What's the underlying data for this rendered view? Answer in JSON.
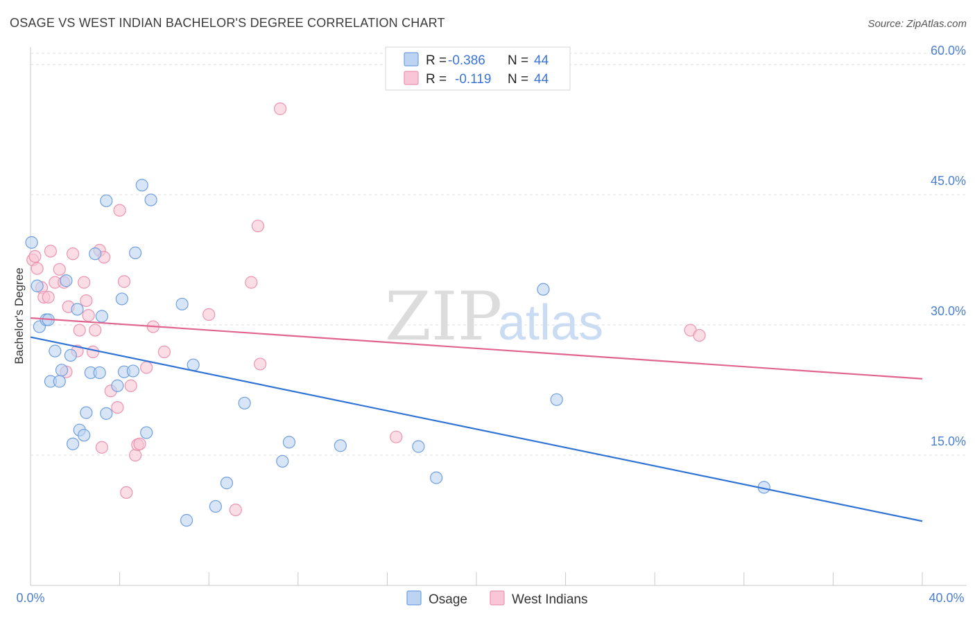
{
  "title": "OSAGE VS WEST INDIAN BACHELOR'S DEGREE CORRELATION CHART",
  "source": "Source: ZipAtlas.com",
  "watermark": {
    "zip": "ZIP",
    "atlas": "atlas"
  },
  "legend": {
    "r_label": "R =",
    "n_label": "N =",
    "rows": [
      {
        "r": "-0.386",
        "n": "44"
      },
      {
        "r": "-0.119",
        "n": "44"
      }
    ]
  },
  "chart_data": {
    "type": "scatter",
    "title": "OSAGE VS WEST INDIAN BACHELOR'S DEGREE CORRELATION CHART",
    "xlabel": "",
    "ylabel": "Bachelor's Degree",
    "xlim": [
      0,
      40
    ],
    "ylim": [
      0,
      62
    ],
    "x_tick_labels": [
      "0.0%",
      "40.0%"
    ],
    "y_ticks": [
      15,
      30,
      45,
      60
    ],
    "y_tick_labels": [
      "15.0%",
      "30.0%",
      "45.0%",
      "60.0%"
    ],
    "grid": true,
    "legend_position": "top-center",
    "colors": {
      "osage_fill": "#bcd3f2",
      "osage_stroke": "#6f9fe0",
      "osage_line": "#2f73d5",
      "wi_fill": "#f8c6d6",
      "wi_stroke": "#ec93b0",
      "wi_line": "#e0648f"
    },
    "series": [
      {
        "name": "Osage",
        "points": [
          [
            0.05,
            39.5
          ],
          [
            0.3,
            34.5
          ],
          [
            0.4,
            29.8
          ],
          [
            0.7,
            30.6
          ],
          [
            0.8,
            30.6
          ],
          [
            0.9,
            23.5
          ],
          [
            1.1,
            27.0
          ],
          [
            1.3,
            23.5
          ],
          [
            1.4,
            24.8
          ],
          [
            1.6,
            35.1
          ],
          [
            1.8,
            26.5
          ],
          [
            1.9,
            16.3
          ],
          [
            2.1,
            31.8
          ],
          [
            2.2,
            17.9
          ],
          [
            2.4,
            17.3
          ],
          [
            2.5,
            19.9
          ],
          [
            2.7,
            24.5
          ],
          [
            2.9,
            38.2
          ],
          [
            3.1,
            24.5
          ],
          [
            3.2,
            31.0
          ],
          [
            3.4,
            19.8
          ],
          [
            3.4,
            44.3
          ],
          [
            3.9,
            23.0
          ],
          [
            4.1,
            33.0
          ],
          [
            4.2,
            24.6
          ],
          [
            4.6,
            24.7
          ],
          [
            4.7,
            38.3
          ],
          [
            5.0,
            46.1
          ],
          [
            5.2,
            17.6
          ],
          [
            5.4,
            44.4
          ],
          [
            6.8,
            32.4
          ],
          [
            7.0,
            7.5
          ],
          [
            7.3,
            25.4
          ],
          [
            8.3,
            9.1
          ],
          [
            8.8,
            11.8
          ],
          [
            9.6,
            21.0
          ],
          [
            11.3,
            14.3
          ],
          [
            11.6,
            16.5
          ],
          [
            13.9,
            16.1
          ],
          [
            17.4,
            16.0
          ],
          [
            18.2,
            12.4
          ],
          [
            23.0,
            34.1
          ],
          [
            23.6,
            21.4
          ],
          [
            32.9,
            11.3
          ]
        ],
        "trend": {
          "x": [
            0,
            40
          ],
          "y": [
            28.6,
            7.4
          ]
        }
      },
      {
        "name": "West Indians",
        "points": [
          [
            0.1,
            37.5
          ],
          [
            0.2,
            37.9
          ],
          [
            0.3,
            36.5
          ],
          [
            0.5,
            34.3
          ],
          [
            0.6,
            33.2
          ],
          [
            0.8,
            33.2
          ],
          [
            0.9,
            38.5
          ],
          [
            1.1,
            34.9
          ],
          [
            1.3,
            36.4
          ],
          [
            1.5,
            34.9
          ],
          [
            1.6,
            24.6
          ],
          [
            1.7,
            32.1
          ],
          [
            1.9,
            38.2
          ],
          [
            2.1,
            27.0
          ],
          [
            2.2,
            29.4
          ],
          [
            2.4,
            34.9
          ],
          [
            2.5,
            32.8
          ],
          [
            2.6,
            31.1
          ],
          [
            2.8,
            26.9
          ],
          [
            2.9,
            29.4
          ],
          [
            3.1,
            38.6
          ],
          [
            3.2,
            15.9
          ],
          [
            3.3,
            37.8
          ],
          [
            3.6,
            22.4
          ],
          [
            3.9,
            20.5
          ],
          [
            4.0,
            43.2
          ],
          [
            4.2,
            35.0
          ],
          [
            4.3,
            10.7
          ],
          [
            4.5,
            23.0
          ],
          [
            4.7,
            15.0
          ],
          [
            4.8,
            16.2
          ],
          [
            4.9,
            16.3
          ],
          [
            5.2,
            25.1
          ],
          [
            5.5,
            29.8
          ],
          [
            6.0,
            26.9
          ],
          [
            8.0,
            31.2
          ],
          [
            9.2,
            8.7
          ],
          [
            9.9,
            34.9
          ],
          [
            10.2,
            41.4
          ],
          [
            10.3,
            25.5
          ],
          [
            11.2,
            54.9
          ],
          [
            16.4,
            17.1
          ],
          [
            29.6,
            29.4
          ],
          [
            30.0,
            28.8
          ]
        ],
        "trend": {
          "x": [
            0,
            40
          ],
          "y": [
            30.8,
            23.8
          ]
        }
      }
    ]
  }
}
